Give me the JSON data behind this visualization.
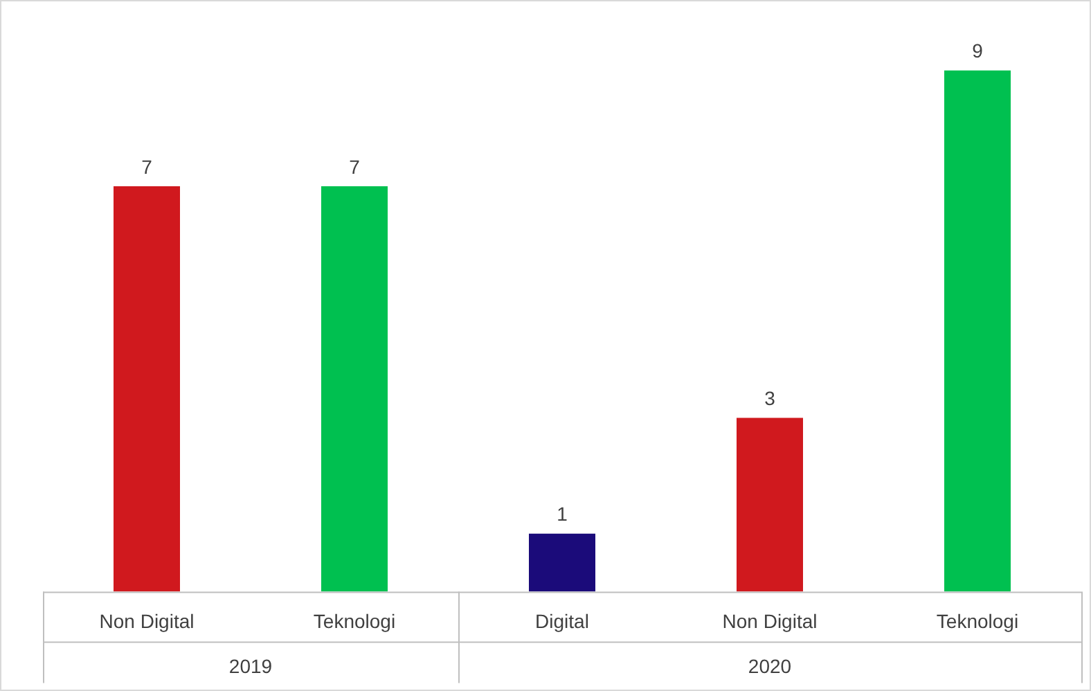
{
  "chart_data": {
    "type": "bar",
    "categories": [
      "Non Digital",
      "Teknologi",
      "Digital",
      "Non Digital",
      "Teknologi"
    ],
    "values": [
      7,
      7,
      1,
      3,
      9
    ],
    "colors": [
      "#d0191e",
      "#00c050",
      "#1b0b7a",
      "#d0191e",
      "#00c050"
    ],
    "data_labels": true,
    "grid": false,
    "legend": false,
    "annotations": [
      "2019",
      "2020"
    ]
  }
}
